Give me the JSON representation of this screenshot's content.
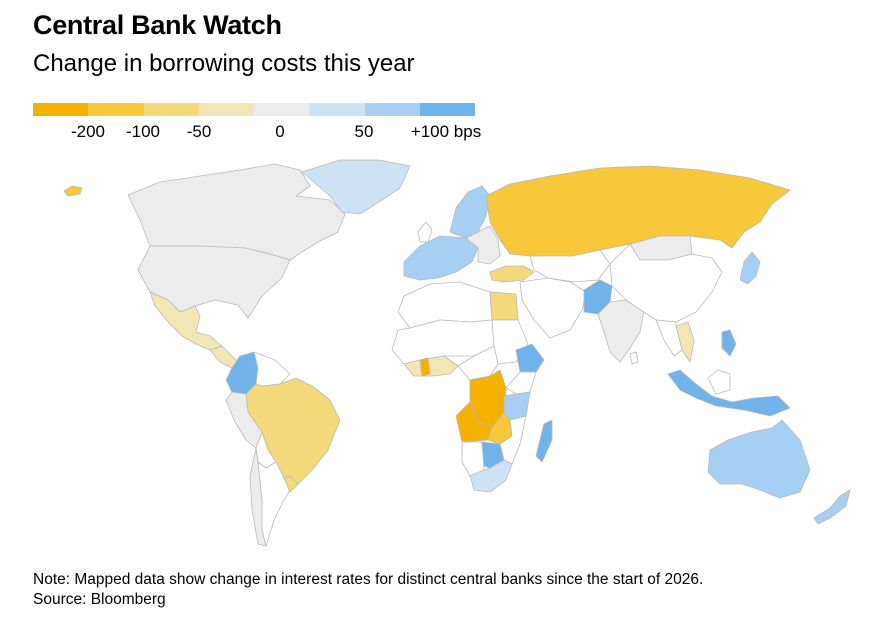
{
  "header": {
    "title": "Central Bank Watch",
    "subtitle": "Change in borrowing costs this year"
  },
  "legend": {
    "swatches": [
      "#f5b100",
      "#f6c83a",
      "#f3d97a",
      "#f3e6b5",
      "#ececec",
      "#cde3f5",
      "#a6d0f3",
      "#6fb3ea"
    ],
    "labels": [
      "-200",
      "-100",
      "-50",
      "0",
      "50",
      "+100 bps"
    ],
    "no_data_color": "#ffffff",
    "border_color": "#b9b9b9"
  },
  "regions": [
    {
      "name": "Canada",
      "color": "#ececec"
    },
    {
      "name": "United States",
      "color": "#ececec"
    },
    {
      "name": "Mexico",
      "color": "#f3e6b5"
    },
    {
      "name": "Greenland",
      "color": "#cde3f5"
    },
    {
      "name": "Central America",
      "color": "#f3e6b5"
    },
    {
      "name": "Colombia",
      "color": "#6fb3ea"
    },
    {
      "name": "Brazil",
      "color": "#f3d97a"
    },
    {
      "name": "Peru",
      "color": "#ececec"
    },
    {
      "name": "Chile",
      "color": "#ececec"
    },
    {
      "name": "Argentina",
      "color": "#ffffff"
    },
    {
      "name": "Paraguay",
      "color": "#f3e6b5"
    },
    {
      "name": "Uruguay",
      "color": "#f3d97a"
    },
    {
      "name": "Iceland",
      "color": "#f6c83a"
    },
    {
      "name": "Scandinavia",
      "color": "#a6d0f3"
    },
    {
      "name": "Western Europe",
      "color": "#a6d0f3"
    },
    {
      "name": "Eastern Europe",
      "color": "#ececec"
    },
    {
      "name": "Russia",
      "color": "#f6c83a"
    },
    {
      "name": "Turkey",
      "color": "#f3d97a"
    },
    {
      "name": "Egypt",
      "color": "#f3d97a"
    },
    {
      "name": "West Africa",
      "color": "#f3e6b5"
    },
    {
      "name": "Ghana",
      "color": "#f5b100"
    },
    {
      "name": "Ethiopia",
      "color": "#6fb3ea"
    },
    {
      "name": "DR Congo",
      "color": "#f5b100"
    },
    {
      "name": "Angola",
      "color": "#f5b100"
    },
    {
      "name": "Tanzania",
      "color": "#a6d0f3"
    },
    {
      "name": "Zambia",
      "color": "#f6c83a"
    },
    {
      "name": "Botswana",
      "color": "#6fb3ea"
    },
    {
      "name": "South Africa",
      "color": "#cde3f5"
    },
    {
      "name": "Madagascar",
      "color": "#6fb3ea"
    },
    {
      "name": "Pakistan",
      "color": "#6fb3ea"
    },
    {
      "name": "India",
      "color": "#ececec"
    },
    {
      "name": "China",
      "color": "#ffffff"
    },
    {
      "name": "Mongolia",
      "color": "#ececec"
    },
    {
      "name": "Japan",
      "color": "#a6d0f3"
    },
    {
      "name": "Thailand",
      "color": "#f3e6b5"
    },
    {
      "name": "Indonesia",
      "color": "#6fb3ea"
    },
    {
      "name": "Philippines",
      "color": "#6fb3ea"
    },
    {
      "name": "Australia",
      "color": "#a6d0f3"
    },
    {
      "name": "New Zealand",
      "color": "#a6d0f3"
    }
  ],
  "footer": {
    "note": "Note: Mapped data show change in interest rates for distinct central banks since the start of 2026.",
    "source": "Source: Bloomberg"
  }
}
